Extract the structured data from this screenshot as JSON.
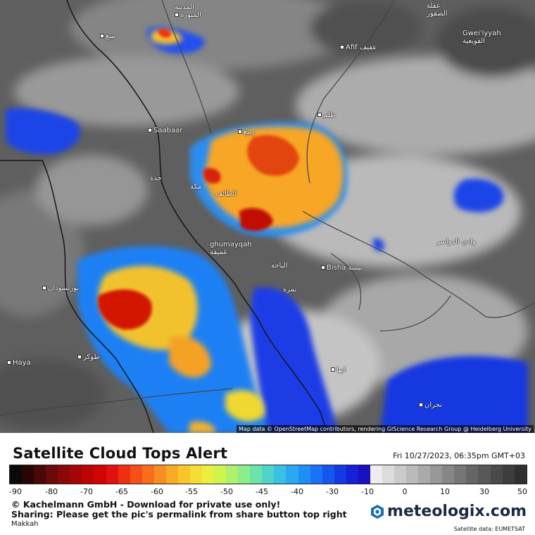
{
  "map": {
    "attribution": "Map data © OpenStreetMap contributors, rendering GIScience Research Group @ Heidelberg University",
    "places": [
      {
        "name": "المدينة\nالمنورة",
        "dot": true
      },
      {
        "name": "ينبع",
        "dot": true
      },
      {
        "name": "عقلة\nالصقور",
        "dot": false
      },
      {
        "name": "Afif عفيف",
        "dot": true
      },
      {
        "name": "Gwei'iyyah\nالقويعية",
        "dot": false
      },
      {
        "name": "Saabaar",
        "dot": true
      },
      {
        "name": "ظلم",
        "dot": true
      },
      {
        "name": "ربيع",
        "dot": true
      },
      {
        "name": "جدة",
        "dot": false
      },
      {
        "name": "مكة",
        "dot": false
      },
      {
        "name": "الطائف",
        "dot": false
      },
      {
        "name": "ghumayqah\nغميقة",
        "dot": false
      },
      {
        "name": "وادي الدواسر",
        "dot": false
      },
      {
        "name": "الباحة",
        "dot": false
      },
      {
        "name": "Bisha بيشة",
        "dot": true
      },
      {
        "name": "بورتسودان",
        "dot": true
      },
      {
        "name": "نمرة",
        "dot": false
      },
      {
        "name": "Haya",
        "dot": true
      },
      {
        "name": "طوكر",
        "dot": true
      },
      {
        "name": "ابها",
        "dot": true
      },
      {
        "name": "نجران",
        "dot": true
      }
    ]
  },
  "legend": {
    "title": "Satellite Cloud Tops Alert",
    "datetime": "Fri 10/27/2023, 06:35pm GMT+03",
    "ticks": [
      "-90",
      "-80",
      "-70",
      "-65",
      "-60",
      "-55",
      "-50",
      "-45",
      "-40",
      "-30",
      "-10",
      "0",
      "10",
      "30",
      "50"
    ],
    "colors": [
      "#0a0a0a",
      "#2a0505",
      "#4a0808",
      "#6a0a0a",
      "#8a0808",
      "#a30606",
      "#bd0404",
      "#d10303",
      "#e31010",
      "#ee3010",
      "#f3501a",
      "#f66e1d",
      "#f88e22",
      "#f9ab26",
      "#f9c52c",
      "#f6dd33",
      "#ecef3b",
      "#cff44e",
      "#aef16d",
      "#8ced8c",
      "#6be3aa",
      "#4fd4c7",
      "#39c1e3",
      "#2aa8f1",
      "#1f8ef5",
      "#1a72f4",
      "#1656ee",
      "#1439e3",
      "#1421d6",
      "#1a10c0",
      "#ededed",
      "#dcdcdc",
      "#cbcbcb",
      "#bababa",
      "#a9a9a9",
      "#989898",
      "#878787",
      "#767676",
      "#666666",
      "#585858",
      "#4a4a4a",
      "#3d3d3d",
      "#303030"
    ],
    "copyright": "© Kachelmann GmbH - Download for private use only!",
    "sharing": "Sharing: Please get the pic's permalink from share button top right",
    "location": "Makkah",
    "logo_text": "meteologix.com",
    "satellite_source": "Satellite data: EUMETSAT"
  }
}
